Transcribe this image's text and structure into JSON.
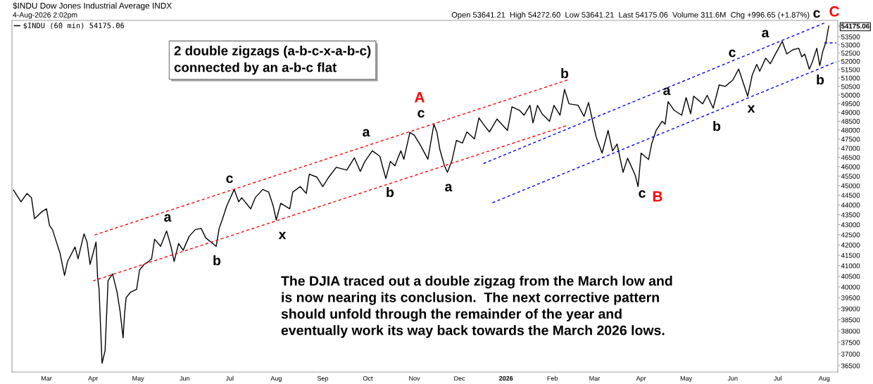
{
  "chart_data": {
    "type": "line",
    "title": "$INDU Dow Jones Industrial Average INDX",
    "subtitle": "4-Aug-2026 2:02pm",
    "annotations": [
      "Open 53641.21  High 54272.60  Low 53641.21  Last 54175.06  Volume 311.6M  Chg +996.65 (+1.87%)",
      "2 double zigzags (a-b-c-x-a-b-c)\nconnected by an a-b-c flat",
      "The DJIA traced out a double zigzag from the March low and\nis now nearing its conclusion.  The next corrective pattern\nshould unfold through the remainder of the year and\neventually work its way back towards the March 2026 lows.",
      "a",
      "b",
      "c",
      "x",
      "a",
      "b",
      "c",
      "A",
      "a",
      "b",
      "c",
      "B",
      "a",
      "b",
      "c",
      "x",
      "a",
      "b",
      "c",
      "C"
    ],
    "series": [
      {
        "name": "$INDU (60 min) 54175.06",
        "color": "#000000",
        "x": [
          "2025-02-07",
          "2025-02-12",
          "2025-02-16",
          "2025-02-19",
          "2025-02-21",
          "2025-02-26",
          "2025-03-01",
          "2025-03-03",
          "2025-03-05",
          "2025-03-07",
          "2025-03-10",
          "2025-03-13",
          "2025-03-15",
          "2025-03-20",
          "2025-03-22",
          "2025-03-26",
          "2025-03-28",
          "2025-03-30",
          "2025-04-03",
          "2025-04-04",
          "2025-04-05",
          "2025-04-07",
          "2025-04-09",
          "2025-04-11",
          "2025-04-14",
          "2025-04-17",
          "2025-04-19",
          "2025-04-21",
          "2025-04-22",
          "2025-04-23",
          "2025-04-26",
          "2025-04-30",
          "2025-05-02",
          "2025-05-05",
          "2025-05-08",
          "2025-05-10",
          "2025-05-12",
          "2025-05-16",
          "2025-05-20",
          "2025-05-23",
          "2025-05-25",
          "2025-05-28",
          "2025-05-31",
          "2025-06-04",
          "2025-06-08",
          "2025-06-12",
          "2025-06-15",
          "2025-06-22",
          "2025-06-24",
          "2025-06-26",
          "2025-06-29",
          "2025-07-04",
          "2025-07-07",
          "2025-07-09",
          "2025-07-15",
          "2025-07-18",
          "2025-07-23",
          "2025-07-27",
          "2025-07-30",
          "2025-08-01",
          "2025-08-04",
          "2025-08-10",
          "2025-08-12",
          "2025-08-17",
          "2025-08-21",
          "2025-08-23",
          "2025-08-28",
          "2025-09-01",
          "2025-09-05",
          "2025-09-10",
          "2025-09-17",
          "2025-09-22",
          "2025-09-26",
          "2025-09-29",
          "2025-10-04",
          "2025-10-09",
          "2025-10-13",
          "2025-10-16",
          "2025-10-19",
          "2025-10-23",
          "2025-10-25",
          "2025-10-29",
          "2025-11-01",
          "2025-11-05",
          "2025-11-10",
          "2025-11-14",
          "2025-11-16",
          "2025-11-18",
          "2025-11-21",
          "2025-11-23",
          "2025-11-26",
          "2025-11-29",
          "2025-12-03",
          "2025-12-06",
          "2025-12-11",
          "2025-12-14",
          "2025-12-18",
          "2025-12-21",
          "2025-12-26",
          "2026-01-02",
          "2026-01-05",
          "2026-01-10",
          "2026-01-13",
          "2026-01-17",
          "2026-01-19",
          "2026-01-22",
          "2026-01-25",
          "2026-01-30",
          "2026-02-02",
          "2026-02-06",
          "2026-02-09",
          "2026-02-12",
          "2026-02-18",
          "2026-02-22",
          "2026-02-25",
          "2026-02-27",
          "2026-03-02",
          "2026-03-06",
          "2026-03-10",
          "2026-03-13",
          "2026-03-16",
          "2026-03-20",
          "2026-03-23",
          "2026-03-28",
          "2026-03-30",
          "2026-04-01",
          "2026-04-06",
          "2026-04-08",
          "2026-04-11",
          "2026-04-15",
          "2026-04-17",
          "2026-04-19",
          "2026-04-23",
          "2026-04-28",
          "2026-05-01",
          "2026-05-04",
          "2026-05-06",
          "2026-05-12",
          "2026-05-15",
          "2026-05-19",
          "2026-05-23",
          "2026-05-27",
          "2026-06-01",
          "2026-06-05",
          "2026-06-11",
          "2026-06-14",
          "2026-06-17",
          "2026-06-19",
          "2026-06-23",
          "2026-06-26",
          "2026-06-30",
          "2026-07-04",
          "2026-07-07",
          "2026-07-11",
          "2026-07-15",
          "2026-07-17",
          "2026-07-19",
          "2026-07-22",
          "2026-07-24",
          "2026-07-27",
          "2026-07-29",
          "2026-07-31",
          "2026-08-02",
          "2026-08-04"
        ],
        "values": [
          44770,
          44160,
          44590,
          44370,
          43300,
          43660,
          43800,
          42960,
          42750,
          42280,
          41600,
          40540,
          41200,
          41900,
          41330,
          42550,
          42140,
          41060,
          42140,
          40480,
          39890,
          36600,
          37140,
          40290,
          40610,
          39760,
          38880,
          37700,
          38760,
          39500,
          39760,
          39890,
          40800,
          41060,
          41200,
          41330,
          42280,
          41930,
          42690,
          41900,
          41200,
          42070,
          41740,
          42420,
          42750,
          42820,
          42350,
          41930,
          42820,
          43240,
          43940,
          44800,
          44160,
          44370,
          43800,
          44370,
          44800,
          44660,
          43940,
          43240,
          44080,
          43800,
          44660,
          44950,
          44590,
          45600,
          45450,
          44950,
          45450,
          45970,
          45820,
          46480,
          45750,
          46280,
          46860,
          46560,
          45370,
          46280,
          46050,
          46860,
          46400,
          47870,
          47710,
          47170,
          46400,
          48330,
          47880,
          46920,
          46060,
          45700,
          46320,
          47430,
          47280,
          47900,
          47510,
          48690,
          48210,
          47900,
          48620,
          47980,
          49320,
          49120,
          48840,
          49400,
          48410,
          49400,
          48920,
          48490,
          49400,
          48840,
          50330,
          49490,
          49410,
          48770,
          49570,
          48770,
          47640,
          46730,
          47980,
          46850,
          47230,
          45700,
          46460,
          45560,
          44950,
          46730,
          46390,
          47230,
          47980,
          48490,
          48330,
          49610,
          49120,
          48840,
          49850,
          48920,
          49930,
          49490,
          49980,
          49240,
          50590,
          50500,
          50870,
          51530,
          49920,
          51170,
          51810,
          51400,
          52190,
          51850,
          52530,
          53220,
          52440,
          52700,
          52790,
          52270,
          52440,
          51530,
          51940,
          52790,
          51730,
          52610,
          53130,
          54175.06
        ]
      },
      {
        "color": "#ff0000",
        "line_style": "dashed",
        "x": [
          "2025-04-02",
          "2026-02-11"
        ],
        "values": [
          42490,
          50880
        ]
      },
      {
        "color": "#ff0000",
        "line_style": "dashed",
        "x": [
          "2025-04-01",
          "2026-02-10"
        ],
        "values": [
          40280,
          48240
        ]
      },
      {
        "color": "#0000ff",
        "line_style": "dashed",
        "x": [
          "2025-12-17",
          "2026-08-02"
        ],
        "values": [
          46170,
          54400
        ]
      },
      {
        "color": "#0000ff",
        "line_style": "dashed",
        "x": [
          "2025-12-23",
          "2026-08-09"
        ],
        "values": [
          44110,
          51970
        ]
      },
      {
        "color": "#0000ff",
        "line_style": "dashed",
        "x": [
          "2026-08-01",
          "2026-08-09"
        ],
        "values": [
          53120,
          53120
        ]
      }
    ],
    "xlim": [
      "2025-02-06",
      "2026-08-10"
    ],
    "ylim": [
      36230,
      54530
    ],
    "log": true,
    "xticks": [
      {
        "value": "2025-03-01",
        "label": "Mar"
      },
      {
        "value": "2025-04-01",
        "label": "Apr"
      },
      {
        "value": "2025-05-01",
        "label": "May"
      },
      {
        "value": "2025-06-01",
        "label": "Jun"
      },
      {
        "value": "2025-07-01",
        "label": "Jul"
      },
      {
        "value": "2025-08-01",
        "label": "Aug"
      },
      {
        "value": "2025-09-01",
        "label": "Sep"
      },
      {
        "value": "2025-10-01",
        "label": "Oct"
      },
      {
        "value": "2025-11-01",
        "label": "Nov"
      },
      {
        "value": "2025-12-01",
        "label": "Dec"
      },
      {
        "value": "2026-01-01",
        "label": "2026"
      },
      {
        "value": "2026-02-01",
        "label": "Feb"
      },
      {
        "value": "2026-03-01",
        "label": "Mar"
      },
      {
        "value": "2026-04-01",
        "label": "Apr"
      },
      {
        "value": "2026-05-01",
        "label": "May"
      },
      {
        "value": "2026-06-01",
        "label": "Jun"
      },
      {
        "value": "2026-07-01",
        "label": "Jul"
      },
      {
        "value": "2026-08-01",
        "label": "Aug"
      }
    ],
    "yticks": [
      36500,
      37000,
      37500,
      38000,
      38500,
      39000,
      39500,
      40000,
      40500,
      41000,
      41500,
      42000,
      42500,
      43000,
      43500,
      44000,
      44500,
      45000,
      45500,
      46000,
      46500,
      47000,
      47500,
      48000,
      48500,
      49000,
      49500,
      50000,
      50500,
      51000,
      51500,
      52000,
      52500,
      53000,
      53500,
      {
        "value": 54175.06,
        "label": "54175.06"
      }
    ],
    "legend": "top left"
  }
}
